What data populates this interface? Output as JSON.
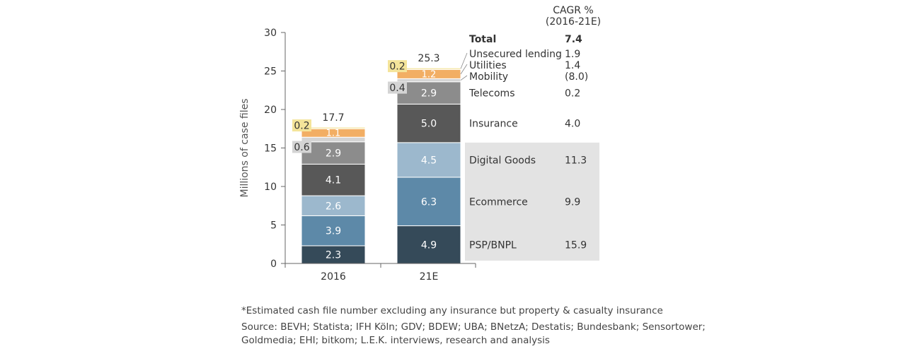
{
  "chart_data": {
    "type": "bar",
    "stacked": true,
    "ylabel": "Millions of case files",
    "ylim": [
      0,
      30
    ],
    "yticks": [
      0,
      5,
      10,
      15,
      20,
      25,
      30
    ],
    "categories": [
      "2016",
      "21E"
    ],
    "totals": [
      "17.7",
      "25.3"
    ],
    "series": [
      {
        "name": "PSP/BNPL",
        "values": [
          2.3,
          4.9
        ],
        "labels": [
          "2.3",
          "4.9"
        ],
        "color": "#354a59",
        "cagr": "15.9",
        "label_color": "#ffffff"
      },
      {
        "name": "Ecommerce",
        "values": [
          3.9,
          6.3
        ],
        "labels": [
          "3.9",
          "6.3"
        ],
        "color": "#5d89a8",
        "cagr": "9.9",
        "label_color": "#ffffff"
      },
      {
        "name": "Digital Goods",
        "values": [
          2.6,
          4.5
        ],
        "labels": [
          "2.6",
          "4.5"
        ],
        "color": "#9cb8cd",
        "cagr": "11.3",
        "label_color": "#ffffff"
      },
      {
        "name": "Insurance",
        "values": [
          4.1,
          5.0
        ],
        "labels": [
          "4.1",
          "5.0"
        ],
        "color": "#585858",
        "cagr": "4.0",
        "label_color": "#ffffff"
      },
      {
        "name": "Telecoms",
        "values": [
          2.9,
          2.9
        ],
        "labels": [
          "2.9",
          "2.9"
        ],
        "color": "#8c8c8c",
        "cagr": "0.2",
        "label_color": "#ffffff"
      },
      {
        "name": "Mobility",
        "values": [
          0.6,
          0.4
        ],
        "labels": [
          "0.6",
          "0.4"
        ],
        "color": "#d4d4d4",
        "cagr": "(8.0)",
        "label_color": "#333333"
      },
      {
        "name": "Utilities",
        "values": [
          1.1,
          1.2
        ],
        "labels": [
          "1.1",
          "1.2"
        ],
        "color": "#f2ae64",
        "cagr": "1.4",
        "label_color": "#ffffff"
      },
      {
        "name": "Unsecured lending",
        "values": [
          0.2,
          0.2
        ],
        "labels": [
          "0.2",
          "0.2"
        ],
        "color": "#f4e49a",
        "cagr": "1.9",
        "label_color": "#333333"
      }
    ],
    "highlight_series": [
      "PSP/BNPL",
      "Ecommerce",
      "Digital Goods"
    ],
    "cagr_header": [
      "CAGR %",
      "(2016-21E)"
    ],
    "total_label": "Total",
    "total_cagr": "7.4"
  },
  "colors": {
    "axis": "#666666",
    "highlight_box": "#e3e3e3",
    "callout_yellow": "#f4e49a",
    "callout_grey": "#d4d4d4",
    "text": "#333333"
  },
  "footnotes": [
    "*Estimated cash file number excluding any insurance but property & casualty insurance",
    "Source: BEVH; Statista; IFH Köln; GDV; BDEW; UBA; BNetzA; Destatis; Bundesbank; Sensortower;",
    "Goldmedia; EHI; bitkom; L.E.K. interviews, research and analysis"
  ]
}
